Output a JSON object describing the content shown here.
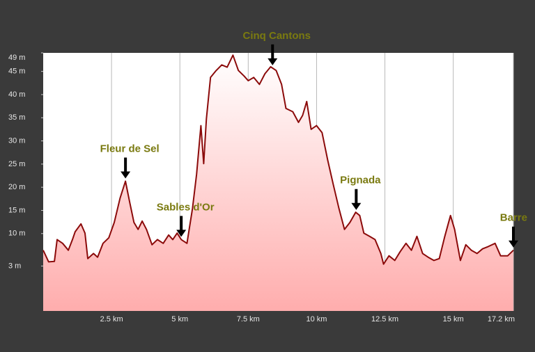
{
  "chart_data": {
    "type": "area",
    "x": [
      0,
      0.2,
      0.41,
      0.51,
      0.71,
      0.92,
      1.07,
      1.17,
      1.38,
      1.53,
      1.63,
      1.84,
      1.99,
      2.19,
      2.4,
      2.6,
      2.81,
      3.01,
      3.16,
      3.32,
      3.47,
      3.62,
      3.78,
      3.98,
      4.18,
      4.39,
      4.59,
      4.74,
      4.9,
      5.05,
      5.26,
      5.46,
      5.61,
      5.77,
      5.87,
      5.97,
      6.12,
      6.33,
      6.53,
      6.73,
      6.94,
      7.14,
      7.35,
      7.5,
      7.7,
      7.91,
      8.11,
      8.32,
      8.52,
      8.72,
      8.88,
      9.13,
      9.34,
      9.49,
      9.64,
      9.8,
      10,
      10.2,
      10.41,
      10.61,
      10.82,
      11.02,
      11.22,
      11.43,
      11.58,
      11.73,
      11.94,
      12.14,
      12.35,
      12.45,
      12.65,
      12.86,
      13.06,
      13.27,
      13.47,
      13.67,
      13.88,
      14.08,
      14.29,
      14.49,
      14.69,
      14.9,
      15.05,
      15.26,
      15.46,
      15.66,
      15.87,
      16.07,
      16.28,
      16.53,
      16.73,
      16.99,
      17.2
    ],
    "series": [
      {
        "color": "#8b0a0a",
        "values": [
          6.4,
          3.9,
          4,
          8.7,
          7.9,
          6.4,
          8.7,
          10.4,
          12.1,
          10.1,
          4.6,
          5.7,
          4.9,
          7.9,
          9.1,
          12.4,
          17.6,
          21.3,
          16.9,
          12.4,
          10.9,
          12.7,
          10.9,
          7.6,
          8.7,
          7.9,
          9.7,
          8.7,
          10.1,
          8.7,
          7.9,
          15.4,
          22.8,
          33.3,
          25.1,
          34.8,
          43.7,
          45.2,
          46.4,
          45.9,
          48.5,
          45.2,
          44,
          43,
          43.7,
          42.2,
          44.5,
          46,
          45.2,
          42.2,
          37,
          36.3,
          34,
          35.5,
          38.5,
          32.5,
          33.3,
          31.8,
          25.8,
          20.6,
          15.4,
          10.9,
          12.4,
          14.6,
          13.9,
          10.1,
          9.4,
          8.7,
          5.7,
          3.4,
          5.2,
          4.2,
          6.1,
          7.9,
          6.4,
          9.4,
          5.7,
          4.9,
          4.2,
          4.6,
          9.4,
          13.9,
          10.9,
          4.2,
          7.6,
          6.4,
          5.7,
          6.7,
          7.2,
          7.9,
          5.2,
          5.2,
          6.4
        ]
      }
    ],
    "xlim": [
      0,
      17.2
    ],
    "ylim": [
      -6.7,
      49
    ],
    "xticks": [
      {
        "value": 2.5,
        "label": "2.5 km"
      },
      {
        "value": 5,
        "label": "5 km"
      },
      {
        "value": 7.5,
        "label": "7.5 km"
      },
      {
        "value": 10,
        "label": "10 km"
      },
      {
        "value": 12.5,
        "label": "12.5 km"
      },
      {
        "value": 15,
        "label": "15 km"
      },
      {
        "value": 17.2,
        "label": "17.2 km"
      }
    ],
    "yticks": [
      {
        "value": 3,
        "label": "3 m"
      },
      {
        "value": 10,
        "label": "10 m"
      },
      {
        "value": 15,
        "label": "15 m"
      },
      {
        "value": 20,
        "label": "20 m"
      },
      {
        "value": 25,
        "label": "25 m"
      },
      {
        "value": 30,
        "label": "30 m"
      },
      {
        "value": 35,
        "label": "35 m"
      },
      {
        "value": 40,
        "label": "40 m"
      },
      {
        "value": 45,
        "label": "45 m"
      },
      {
        "value": 49,
        "label": "49 m"
      }
    ],
    "grid": true,
    "annotations": [
      {
        "label": "Fleur de Sel",
        "x": 3.01
      },
      {
        "label": "Sables d'Or",
        "x": 5.05
      },
      {
        "label": "Cinq Cantons",
        "x": 8.39
      },
      {
        "label": "Pignada",
        "x": 11.45
      },
      {
        "label": "Barre",
        "x": 17.2
      }
    ]
  }
}
